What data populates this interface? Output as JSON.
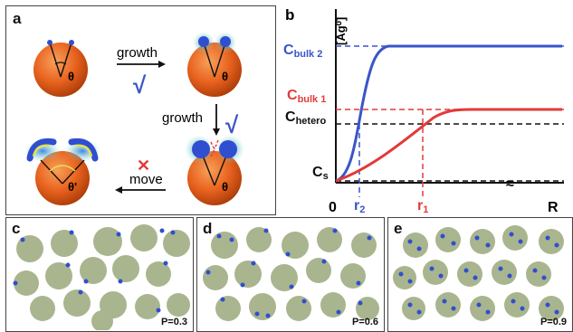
{
  "panels": {
    "a": {
      "label": "a",
      "growth_top": "growth",
      "growth_right": "growth",
      "move": "move",
      "theta": "θ",
      "theta_prime": "θ'",
      "check": "√",
      "cross": "✕"
    },
    "b": {
      "label": "b",
      "ylabel": "[Ag⁰]",
      "cbulk2": "C",
      "cbulk2_sub": "bulk 2",
      "cbulk1": "C",
      "cbulk1_sub": "bulk 1",
      "chetero": "C",
      "chetero_sub": "hetero",
      "cs": "C",
      "cs_sub": "s",
      "origin": "0",
      "r2": "r",
      "r2_sub": "2",
      "r1": "r",
      "r1_sub": "1",
      "axis_break": "≈",
      "R": "R"
    },
    "c": {
      "label": "c",
      "p": "P=0.3"
    },
    "d": {
      "label": "d",
      "p": "P=0.6"
    },
    "e": {
      "label": "e",
      "p": "P=0.9"
    }
  },
  "colors": {
    "sphere": "#e8621e",
    "particle": "#a9b58e",
    "dot": "#2f4fd0",
    "blue_curve": "#3a55c8",
    "red_curve": "#e23a3a",
    "black": "#111111"
  }
}
